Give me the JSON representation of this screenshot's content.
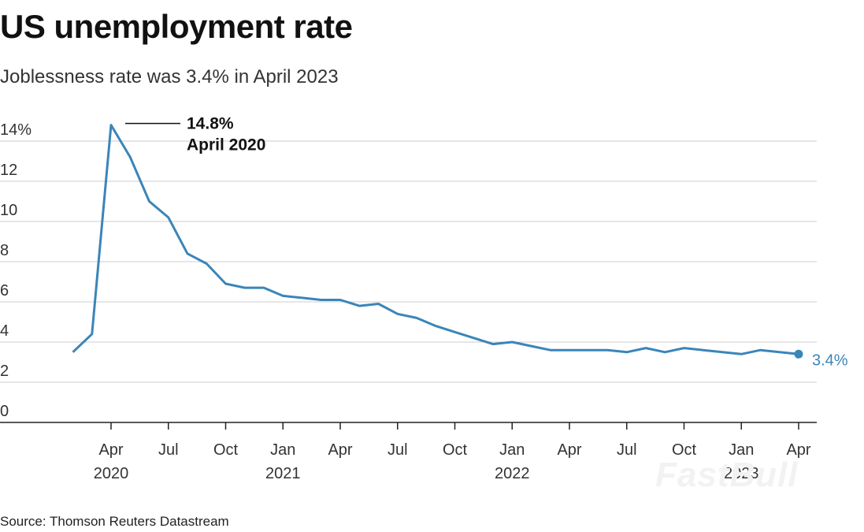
{
  "title": "US unemployment rate",
  "subtitle": "Joblessness rate was 3.4% in April 2023",
  "source": "Source: Thomson Reuters Datastream",
  "watermark": "FastBull",
  "colors": {
    "line": "#3a85b9",
    "grid": "#cccccc",
    "axis": "#222222"
  },
  "chart_data": {
    "type": "line",
    "title": "US unemployment rate",
    "xlabel": "",
    "ylabel": "",
    "ylim": [
      0,
      15
    ],
    "y_ticks": [
      {
        "value": 0,
        "label": "0"
      },
      {
        "value": 2,
        "label": "2"
      },
      {
        "value": 4,
        "label": "4"
      },
      {
        "value": 6,
        "label": "6"
      },
      {
        "value": 8,
        "label": "8"
      },
      {
        "value": 10,
        "label": "10"
      },
      {
        "value": 12,
        "label": "12"
      },
      {
        "value": 14,
        "label": "14%"
      }
    ],
    "x_ticks": [
      {
        "month_index": 3,
        "label": "Apr",
        "year": "2020"
      },
      {
        "month_index": 6,
        "label": "Jul",
        "year": ""
      },
      {
        "month_index": 9,
        "label": "Oct",
        "year": ""
      },
      {
        "month_index": 12,
        "label": "Jan",
        "year": "2021"
      },
      {
        "month_index": 15,
        "label": "Apr",
        "year": ""
      },
      {
        "month_index": 18,
        "label": "Jul",
        "year": ""
      },
      {
        "month_index": 21,
        "label": "Oct",
        "year": ""
      },
      {
        "month_index": 24,
        "label": "Jan",
        "year": "2022"
      },
      {
        "month_index": 27,
        "label": "Apr",
        "year": ""
      },
      {
        "month_index": 30,
        "label": "Jul",
        "year": ""
      },
      {
        "month_index": 33,
        "label": "Oct",
        "year": ""
      },
      {
        "month_index": 36,
        "label": "Jan",
        "year": "2023"
      },
      {
        "month_index": 39,
        "label": "Apr",
        "year": ""
      }
    ],
    "series": [
      {
        "points": [
          {
            "month_index": 1,
            "value": 3.5
          },
          {
            "month_index": 2,
            "value": 4.4
          },
          {
            "month_index": 3,
            "value": 14.8
          },
          {
            "month_index": 4,
            "value": 13.2
          },
          {
            "month_index": 5,
            "value": 11.0
          },
          {
            "month_index": 6,
            "value": 10.2
          },
          {
            "month_index": 7,
            "value": 8.4
          },
          {
            "month_index": 8,
            "value": 7.9
          },
          {
            "month_index": 9,
            "value": 6.9
          },
          {
            "month_index": 10,
            "value": 6.7
          },
          {
            "month_index": 11,
            "value": 6.7
          },
          {
            "month_index": 12,
            "value": 6.3
          },
          {
            "month_index": 13,
            "value": 6.2
          },
          {
            "month_index": 14,
            "value": 6.1
          },
          {
            "month_index": 15,
            "value": 6.1
          },
          {
            "month_index": 16,
            "value": 5.8
          },
          {
            "month_index": 17,
            "value": 5.9
          },
          {
            "month_index": 18,
            "value": 5.4
          },
          {
            "month_index": 19,
            "value": 5.2
          },
          {
            "month_index": 20,
            "value": 4.8
          },
          {
            "month_index": 21,
            "value": 4.5
          },
          {
            "month_index": 22,
            "value": 4.2
          },
          {
            "month_index": 23,
            "value": 3.9
          },
          {
            "month_index": 24,
            "value": 4.0
          },
          {
            "month_index": 25,
            "value": 3.8
          },
          {
            "month_index": 26,
            "value": 3.6
          },
          {
            "month_index": 27,
            "value": 3.6
          },
          {
            "month_index": 28,
            "value": 3.6
          },
          {
            "month_index": 29,
            "value": 3.6
          },
          {
            "month_index": 30,
            "value": 3.5
          },
          {
            "month_index": 31,
            "value": 3.7
          },
          {
            "month_index": 32,
            "value": 3.5
          },
          {
            "month_index": 33,
            "value": 3.7
          },
          {
            "month_index": 34,
            "value": 3.6
          },
          {
            "month_index": 35,
            "value": 3.5
          },
          {
            "month_index": 36,
            "value": 3.4
          },
          {
            "month_index": 37,
            "value": 3.6
          },
          {
            "month_index": 38,
            "value": 3.5
          },
          {
            "month_index": 39,
            "value": 3.4
          }
        ]
      }
    ],
    "annotations": {
      "peak": {
        "month_index": 3,
        "value": 14.8,
        "line1": "14.8%",
        "line2": "April 2020"
      },
      "end": {
        "month_index": 39,
        "value": 3.4,
        "label": "3.4%"
      }
    },
    "grid": true,
    "legend": "none"
  }
}
